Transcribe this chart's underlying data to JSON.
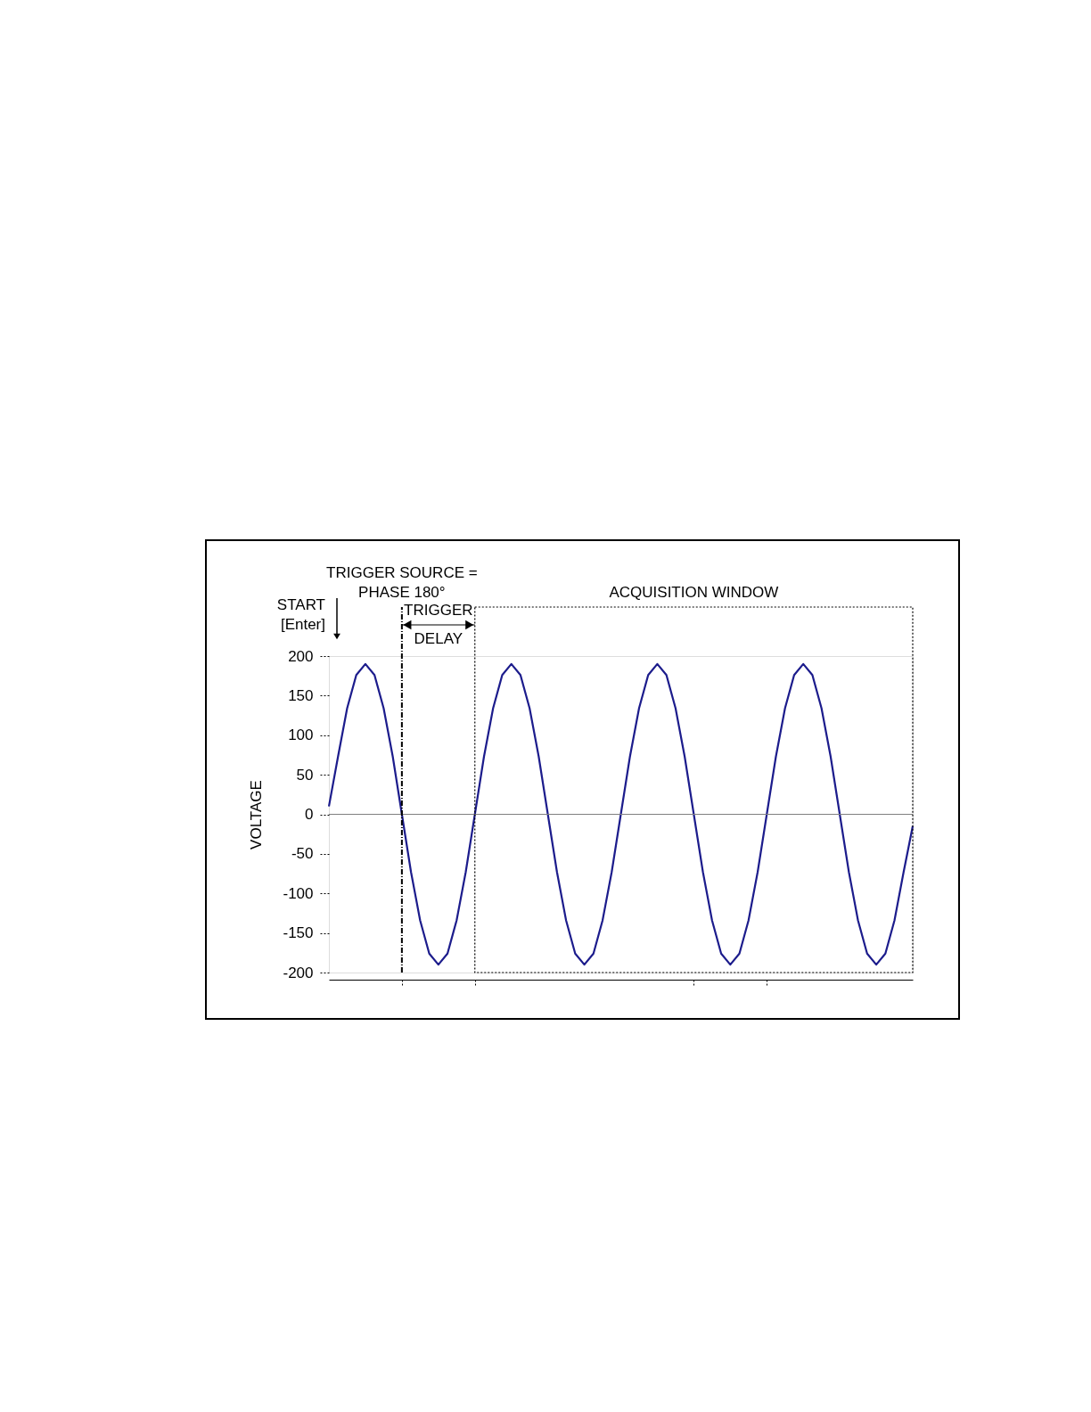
{
  "chart_data": {
    "type": "line",
    "ylabel": "VOLTAGE",
    "categories": [
      null,
      null,
      null,
      null,
      null,
      null,
      null,
      null,
      null,
      null,
      null,
      null,
      null,
      null,
      null,
      null,
      null,
      null,
      null,
      null,
      null,
      null,
      null,
      null,
      null,
      null,
      null,
      null,
      null,
      null,
      null,
      null,
      null,
      null,
      null,
      null,
      null,
      null,
      null,
      null,
      null,
      null,
      null,
      null,
      null,
      null,
      null,
      null,
      null,
      null,
      null,
      null,
      null,
      null,
      null,
      null,
      null,
      null,
      null,
      null,
      null,
      null,
      null,
      null,
      null
    ],
    "series": [
      {
        "color": "#1c1c8c",
        "values": [
          10,
          73,
          134,
          176,
          190,
          176,
          134,
          73,
          0,
          -73,
          -134,
          -176,
          -190,
          -176,
          -134,
          -73,
          0,
          73,
          134,
          176,
          190,
          176,
          134,
          73,
          0,
          -73,
          -134,
          -176,
          -190,
          -176,
          -134,
          -73,
          0,
          73,
          134,
          176,
          190,
          176,
          134,
          73,
          0,
          -73,
          -134,
          -176,
          -190,
          -176,
          -134,
          -73,
          0,
          73,
          134,
          176,
          190,
          176,
          134,
          73,
          0,
          -73,
          -134,
          -176,
          -190,
          -176,
          -134,
          -73,
          -15
        ]
      }
    ],
    "ylim": [
      -200,
      200
    ],
    "yticks": [
      -200,
      -150,
      -100,
      -50,
      0,
      50,
      100,
      150,
      200
    ],
    "tick_labels": "y",
    "grid": false,
    "marker": "none",
    "line_style": "solid",
    "ref_lines": [
      {
        "axis": "y",
        "value": 0,
        "color": "#808080"
      }
    ],
    "annotations": [
      "TRIGGER SOURCE =\nPHASE 180°",
      "START\n[Enter]",
      "TRIGGER\nDELAY",
      "ACQUISITION WINDOW"
    ]
  }
}
